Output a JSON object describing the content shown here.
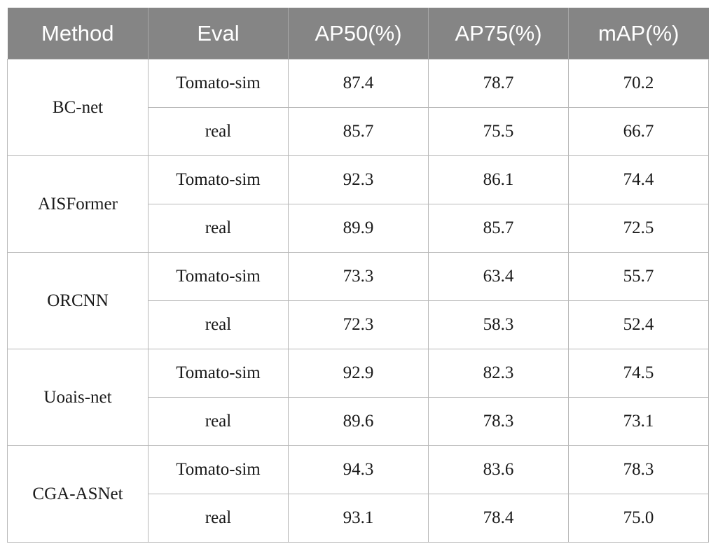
{
  "table": {
    "headers": [
      "Method",
      "Eval",
      "AP50(%)",
      "AP75(%)",
      "mAP(%)"
    ],
    "groups": [
      {
        "method": "BC-net",
        "rows": [
          {
            "eval": "Tomato-sim",
            "ap50": "87.4",
            "ap75": "78.7",
            "map": "70.2"
          },
          {
            "eval": "real",
            "ap50": "85.7",
            "ap75": "75.5",
            "map": "66.7"
          }
        ]
      },
      {
        "method": "AISFormer",
        "rows": [
          {
            "eval": "Tomato-sim",
            "ap50": "92.3",
            "ap75": "86.1",
            "map": "74.4"
          },
          {
            "eval": "real",
            "ap50": "89.9",
            "ap75": "85.7",
            "map": "72.5"
          }
        ]
      },
      {
        "method": "ORCNN",
        "rows": [
          {
            "eval": "Tomato-sim",
            "ap50": "73.3",
            "ap75": "63.4",
            "map": "55.7"
          },
          {
            "eval": "real",
            "ap50": "72.3",
            "ap75": "58.3",
            "map": "52.4"
          }
        ]
      },
      {
        "method": "Uoais-net",
        "rows": [
          {
            "eval": "Tomato-sim",
            "ap50": "92.9",
            "ap75": "82.3",
            "map": "74.5"
          },
          {
            "eval": "real",
            "ap50": "89.6",
            "ap75": "78.3",
            "map": "73.1"
          }
        ]
      },
      {
        "method": "CGA-ASNet",
        "rows": [
          {
            "eval": "Tomato-sim",
            "ap50": "94.3",
            "ap75": "83.6",
            "map": "78.3"
          },
          {
            "eval": "real",
            "ap50": "93.1",
            "ap75": "78.4",
            "map": "75.0"
          }
        ]
      }
    ]
  },
  "colors": {
    "header_bg": "#858585",
    "header_text": "#ffffff",
    "grid": "#b8b8b8"
  }
}
